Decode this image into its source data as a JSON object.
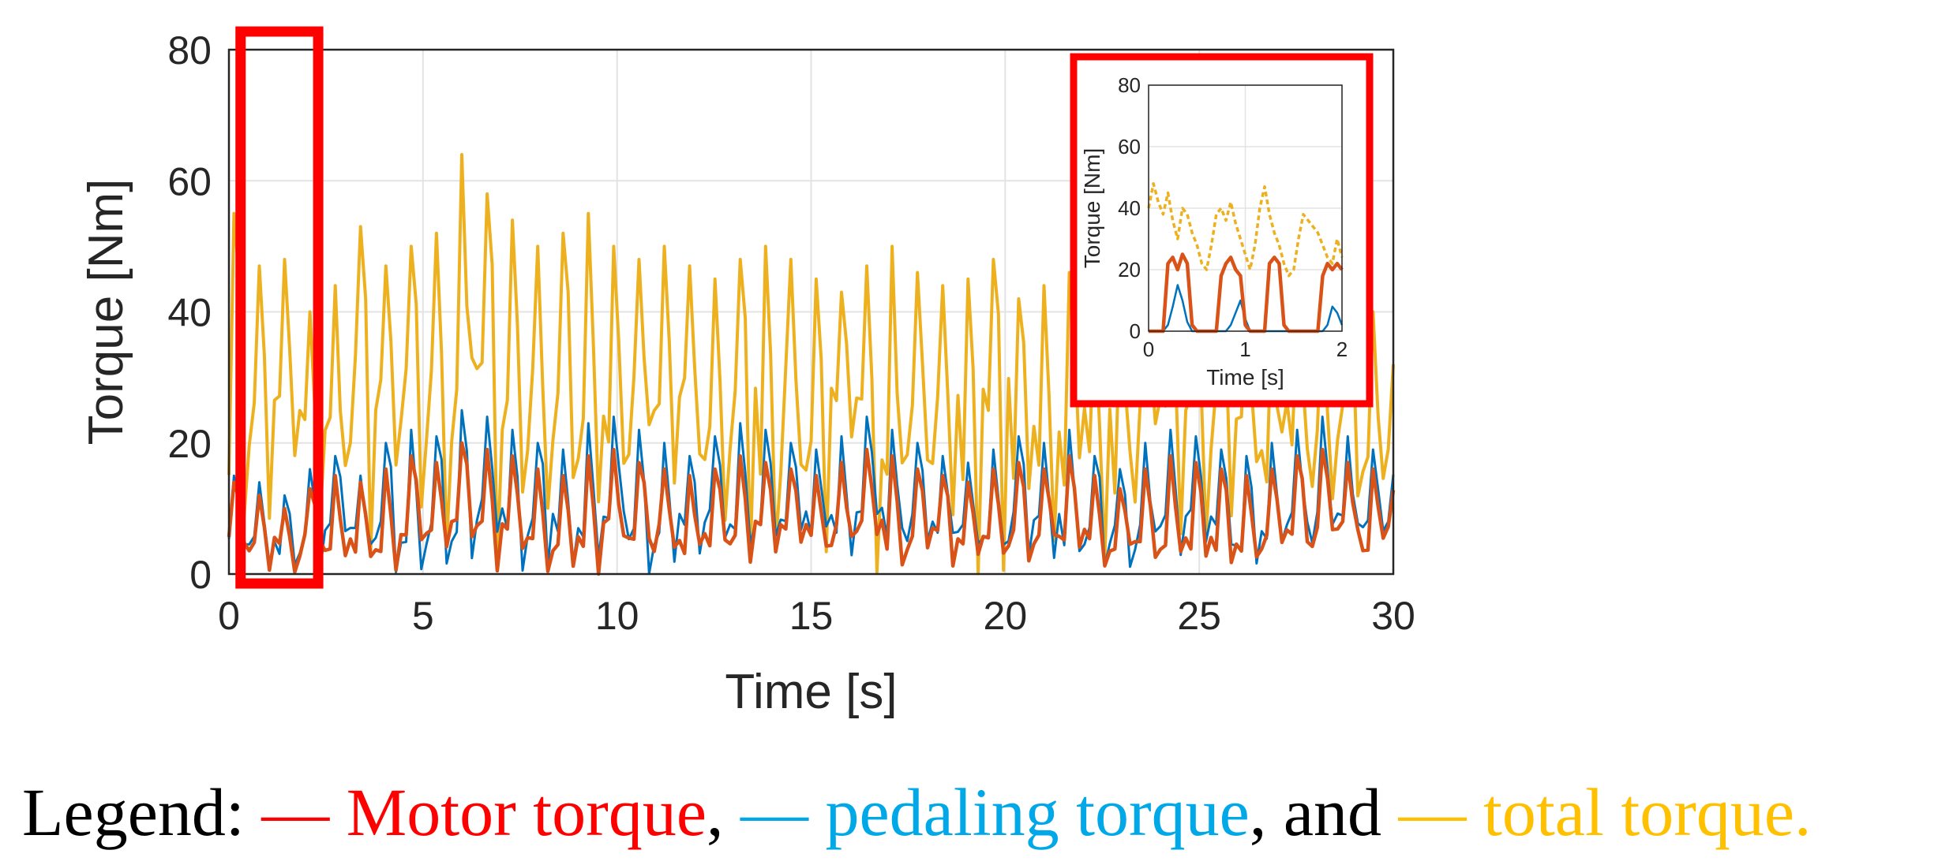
{
  "colors": {
    "motor": "#d95319",
    "pedaling": "#0072bd",
    "total": "#edb120",
    "highlight": "#ff0000",
    "legend_motor": "#ff0000",
    "legend_pedaling": "#00a8e8",
    "legend_total": "#ffc000"
  },
  "chart_data": [
    {
      "type": "line",
      "xlabel": "Time [s]",
      "ylabel": "Torque [Nm]",
      "xlim": [
        0,
        30
      ],
      "ylim": [
        0,
        80
      ],
      "xticks": [
        "0",
        "5",
        "10",
        "15",
        "20",
        "25",
        "30"
      ],
      "yticks": [
        "0",
        "20",
        "40",
        "60",
        "80"
      ],
      "grid": true,
      "highlight_region": {
        "x": [
          0.3,
          2.3
        ],
        "color": "#ff0000"
      },
      "series": [
        {
          "key": "total",
          "peaks": [
            55,
            47,
            48,
            40,
            44,
            53,
            47,
            50,
            52,
            64,
            58,
            54,
            50,
            52,
            55,
            50,
            48,
            50,
            47,
            45,
            48,
            50,
            48,
            45,
            43,
            47,
            50,
            46,
            44,
            45,
            48,
            42,
            44,
            46,
            40,
            38,
            42,
            45,
            44,
            46,
            43,
            40,
            38,
            42,
            45,
            40
          ]
        },
        {
          "key": "pedaling",
          "peaks": [
            15,
            14,
            12,
            16,
            18,
            15,
            20,
            22,
            21,
            25,
            24,
            22,
            20,
            19,
            23,
            24,
            22,
            20,
            18,
            21,
            23,
            22,
            20,
            19,
            21,
            24,
            22,
            20,
            18,
            17,
            19,
            21,
            20,
            22,
            18,
            16,
            20,
            22,
            21,
            19,
            18,
            20,
            22,
            24,
            21,
            19
          ]
        },
        {
          "key": "motor",
          "peaks": [
            14,
            12,
            10,
            13,
            15,
            14,
            16,
            18,
            17,
            20,
            19,
            18,
            16,
            15,
            18,
            19,
            17,
            16,
            15,
            16,
            18,
            17,
            16,
            15,
            17,
            19,
            18,
            16,
            15,
            14,
            16,
            17,
            16,
            18,
            15,
            13,
            16,
            18,
            17,
            16,
            15,
            16,
            18,
            19,
            17,
            16
          ]
        }
      ]
    },
    {
      "type": "line",
      "inset": true,
      "xlabel": "Time [s]",
      "ylabel": "Torque [Nm]",
      "xlim": [
        0,
        2
      ],
      "ylim": [
        0,
        80
      ],
      "xticks": [
        "0",
        "1",
        "2"
      ],
      "yticks": [
        "0",
        "20",
        "40",
        "60",
        "80"
      ],
      "grid": true,
      "series": [
        {
          "key": "total",
          "x": [
            0,
            0.05,
            0.1,
            0.15,
            0.2,
            0.25,
            0.3,
            0.35,
            0.4,
            0.45,
            0.5,
            0.55,
            0.6,
            0.65,
            0.7,
            0.75,
            0.8,
            0.85,
            0.9,
            0.95,
            1.0,
            1.05,
            1.1,
            1.15,
            1.2,
            1.25,
            1.3,
            1.35,
            1.4,
            1.45,
            1.5,
            1.55,
            1.6,
            1.65,
            1.7,
            1.75,
            1.8,
            1.85,
            1.9,
            1.95,
            2.0
          ],
          "y": [
            40,
            48,
            42,
            38,
            45,
            36,
            30,
            40,
            38,
            32,
            28,
            22,
            20,
            28,
            38,
            40,
            36,
            42,
            35,
            30,
            25,
            20,
            28,
            40,
            47,
            38,
            32,
            28,
            22,
            18,
            20,
            30,
            38,
            36,
            34,
            32,
            28,
            24,
            22,
            30,
            24
          ]
        },
        {
          "key": "pedaling",
          "x": [
            0,
            0.05,
            0.1,
            0.15,
            0.2,
            0.25,
            0.3,
            0.35,
            0.4,
            0.45,
            0.5,
            0.55,
            0.6,
            0.65,
            0.7,
            0.75,
            0.8,
            0.85,
            0.9,
            0.95,
            1.0,
            1.05,
            1.1,
            1.15,
            1.2,
            1.25,
            1.3,
            1.35,
            1.4,
            1.45,
            1.5,
            1.55,
            1.6,
            1.65,
            1.7,
            1.75,
            1.8,
            1.85,
            1.9,
            1.95,
            2.0
          ],
          "y": [
            0,
            0,
            0,
            0,
            2,
            8,
            15,
            10,
            3,
            0,
            0,
            0,
            0,
            0,
            0,
            0,
            0,
            2,
            6,
            10,
            4,
            0,
            0,
            0,
            0,
            0,
            0,
            0,
            0,
            0,
            0,
            0,
            0,
            0,
            0,
            0,
            0,
            2,
            8,
            6,
            2
          ]
        },
        {
          "key": "motor",
          "x": [
            0,
            0.05,
            0.1,
            0.15,
            0.2,
            0.25,
            0.3,
            0.35,
            0.4,
            0.45,
            0.5,
            0.55,
            0.6,
            0.65,
            0.7,
            0.75,
            0.8,
            0.85,
            0.9,
            0.95,
            1.0,
            1.05,
            1.1,
            1.15,
            1.2,
            1.25,
            1.3,
            1.35,
            1.4,
            1.45,
            1.5,
            1.55,
            1.6,
            1.65,
            1.7,
            1.75,
            1.8,
            1.85,
            1.9,
            1.95,
            2.0
          ],
          "y": [
            0,
            0,
            0,
            0,
            22,
            24,
            20,
            25,
            22,
            2,
            0,
            0,
            0,
            0,
            0,
            18,
            22,
            24,
            20,
            18,
            2,
            0,
            0,
            0,
            0,
            22,
            24,
            22,
            2,
            0,
            0,
            0,
            0,
            0,
            0,
            0,
            18,
            22,
            20,
            22,
            20
          ]
        }
      ]
    }
  ],
  "legend_text": {
    "prefix": "Legend: ",
    "motor": "— Motor torque",
    "comma1": ", ",
    "pedaling": "— pedaling torque",
    "and": ", and ",
    "total": "— total torque."
  }
}
